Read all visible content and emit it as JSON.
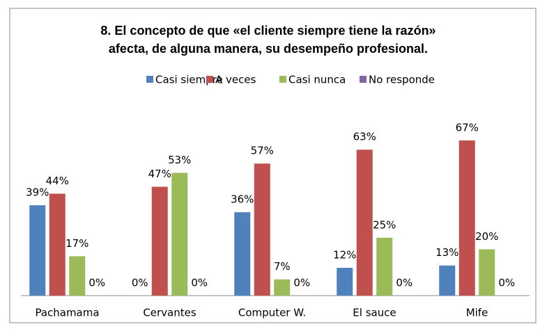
{
  "chart_data": {
    "type": "bar",
    "title": [
      "8. El concepto de que «el cliente siempre tiene la razón»",
      "afecta, de alguna manera, su desempeño profesional."
    ],
    "categories": [
      "Pachamama",
      "Cervantes",
      "Computer W.",
      "El sauce",
      "Mife"
    ],
    "series": [
      {
        "name": "Casi siempre",
        "color": "#4f81bd",
        "values": [
          39,
          0,
          36,
          12,
          13
        ],
        "value_labels": [
          "39%",
          "0%",
          "36%",
          "12%",
          "13%"
        ]
      },
      {
        "name": "A veces",
        "color": "#c0504d",
        "values": [
          44,
          47,
          57,
          63,
          67
        ],
        "value_labels": [
          "44%",
          "47%",
          "57%",
          "63%",
          "67%"
        ]
      },
      {
        "name": "Casi nunca",
        "color": "#9bbb59",
        "values": [
          17,
          53,
          7,
          25,
          20
        ],
        "value_labels": [
          "17%",
          "53%",
          "7%",
          "25%",
          "20%"
        ]
      },
      {
        "name": "No responde",
        "color": "#8064a2",
        "values": [
          0,
          0,
          0,
          0,
          0
        ],
        "value_labels": [
          "0%",
          "0%",
          "0%",
          "0%",
          "0%"
        ]
      }
    ],
    "legend": "top"
  }
}
